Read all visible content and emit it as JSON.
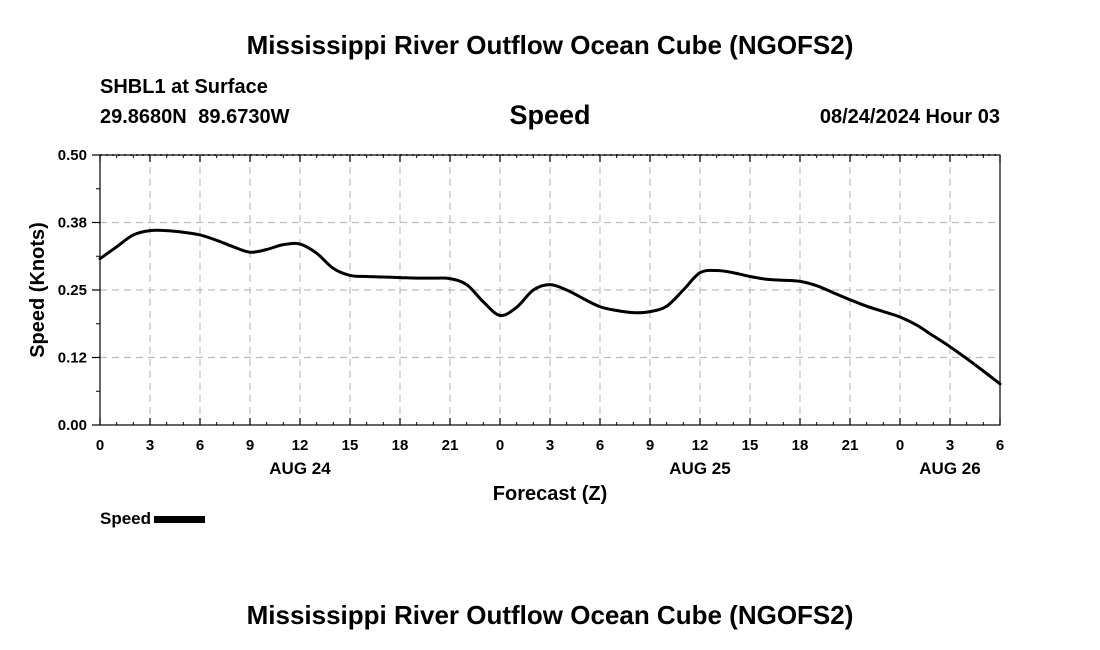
{
  "page": {
    "title_top": "Mississippi River Outflow Ocean Cube (NGOFS2)",
    "title_bottom": "Mississippi River Outflow Ocean Cube (NGOFS2)",
    "station": "SHBL1 at Surface",
    "coordinates": "29.8680N 89.6730W",
    "metric": "Speed",
    "datetime": "08/24/2024 Hour 03"
  },
  "chart_data": {
    "type": "line",
    "title": "Speed",
    "xlabel": "Forecast (Z)",
    "ylabel": "Speed (Knots)",
    "xlim": [
      0,
      54
    ],
    "ylim": [
      0,
      0.5
    ],
    "y_ticks": [
      0,
      0.125,
      0.25,
      0.375,
      0.5
    ],
    "y_tick_labels": [
      "0.00",
      "0.12",
      "0.25",
      "0.38",
      "0.50"
    ],
    "x_ticks": [
      0,
      3,
      6,
      9,
      12,
      15,
      18,
      21,
      24,
      27,
      30,
      33,
      36,
      39,
      42,
      45,
      48,
      51,
      54
    ],
    "x_tick_labels": [
      "0",
      "3",
      "6",
      "9",
      "12",
      "15",
      "18",
      "21",
      "0",
      "3",
      "6",
      "9",
      "12",
      "15",
      "18",
      "21",
      "0",
      "3",
      "6"
    ],
    "day_labels": [
      {
        "x": 12,
        "label": "AUG 24"
      },
      {
        "x": 36,
        "label": "AUG 25"
      },
      {
        "x": 51,
        "label": "AUG 26"
      }
    ],
    "grid": true,
    "legend": {
      "position": "bottom-left",
      "entries": [
        "Speed"
      ]
    },
    "series": [
      {
        "name": "Speed",
        "color": "#000000",
        "x": [
          0,
          1,
          2,
          3,
          4,
          5,
          6,
          7,
          8,
          9,
          10,
          11,
          12,
          13,
          14,
          15,
          16,
          17,
          18,
          19,
          20,
          21,
          22,
          23,
          24,
          25,
          26,
          27,
          28,
          29,
          30,
          31,
          32,
          33,
          34,
          35,
          36,
          37,
          38,
          39,
          40,
          41,
          42,
          43,
          44,
          45,
          46,
          47,
          48,
          49,
          50,
          51,
          52,
          53,
          54
        ],
        "values": [
          0.308,
          0.33,
          0.352,
          0.36,
          0.36,
          0.357,
          0.352,
          0.342,
          0.33,
          0.32,
          0.325,
          0.334,
          0.335,
          0.318,
          0.29,
          0.277,
          0.275,
          0.274,
          0.273,
          0.272,
          0.272,
          0.271,
          0.26,
          0.228,
          0.203,
          0.218,
          0.25,
          0.26,
          0.25,
          0.234,
          0.219,
          0.212,
          0.208,
          0.21,
          0.22,
          0.25,
          0.282,
          0.286,
          0.282,
          0.275,
          0.27,
          0.268,
          0.266,
          0.258,
          0.245,
          0.232,
          0.22,
          0.21,
          0.2,
          0.185,
          0.165,
          0.145,
          0.123,
          0.1,
          0.076
        ]
      }
    ]
  }
}
